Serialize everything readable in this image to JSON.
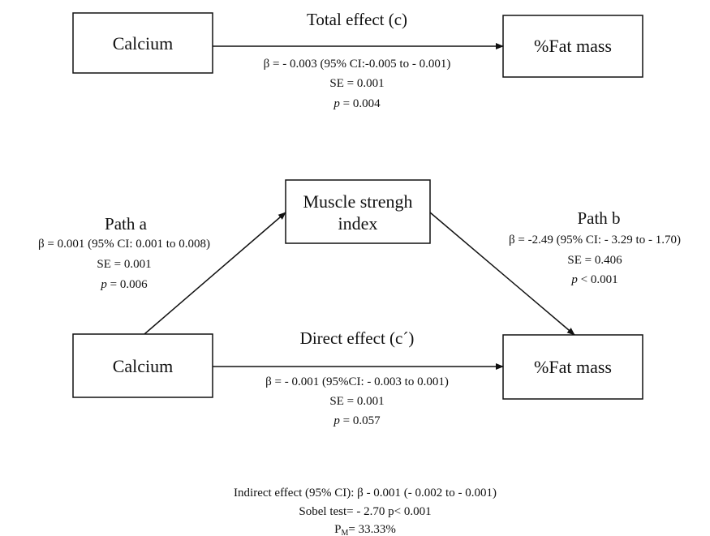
{
  "total_effect": {
    "label": "Total effect (c)",
    "beta": "β = - 0.003 (95% CI:-0.005 to - 0.001)",
    "se": "SE = 0.001",
    "p": {
      "symbol": "p",
      "value": "= 0.004"
    }
  },
  "nodes": [
    {
      "label": [
        "Calcium"
      ]
    },
    {
      "label": [
        "%Fat mass"
      ]
    },
    {
      "label": [
        "Muscle strengh",
        "index"
      ]
    },
    {
      "label": [
        "Calcium"
      ]
    },
    {
      "label": [
        "%Fat mass"
      ]
    }
  ],
  "path_a": {
    "label": "Path a",
    "beta": "β = 0.001 (95% CI: 0.001 to 0.008)",
    "se": "SE = 0.001",
    "p": {
      "symbol": "p",
      "value": "= 0.006"
    }
  },
  "path_b": {
    "label": "Path b",
    "beta": "β = -2.49 (95% CI: - 3.29 to  - 1.70)",
    "se": "SE = 0.406",
    "p": {
      "symbol": "p",
      "value": "< 0.001"
    }
  },
  "direct_effect": {
    "label": "Direct effect (c´)",
    "beta": "β = - 0.001 (95%CI: - 0.003 to 0.001)",
    "se": "SE = 0.001",
    "p": {
      "symbol": "p",
      "value": "= 0.057"
    }
  },
  "summary": {
    "indirect": "Indirect effect (95% CI): β  - 0.001  (- 0.002 to - 0.001)",
    "sobel": "Sobel test= - 2.70  p< 0.001",
    "pm": {
      "main": "P",
      "sub": "M",
      "value": "= 33.33%"
    }
  }
}
